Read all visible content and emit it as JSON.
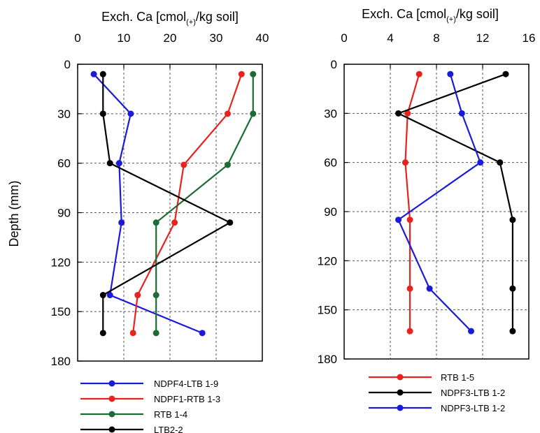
{
  "chart_data": [
    {
      "type": "line",
      "title": "",
      "xlabel_parts": {
        "before": "Exch. Ca [cmol",
        "sub": "(+)",
        "after": "/kg soil]"
      },
      "ylabel": "Depth (mm)",
      "xlim": [
        0,
        40
      ],
      "ylim": [
        0,
        180
      ],
      "y_inverted": true,
      "x_axis_position": "top",
      "xticks": [
        0,
        10,
        20,
        30,
        40
      ],
      "yticks": [
        0,
        30,
        60,
        90,
        120,
        150,
        180
      ],
      "grid": true,
      "legend_placement": "below",
      "series": [
        {
          "name": "NDPF4-LTB 1-9",
          "color": "#1a1adb",
          "x": [
            3.5,
            11.5,
            9.0,
            9.5,
            7.0,
            27.0
          ],
          "y": [
            6,
            30,
            60,
            96,
            140,
            163
          ]
        },
        {
          "name": "NDPF1-RTB 1-3",
          "color": "#e8231e",
          "x": [
            35.5,
            32.5,
            23.0,
            21.0,
            13.0,
            12.0
          ],
          "y": [
            6,
            30,
            61,
            96,
            140,
            163
          ]
        },
        {
          "name": "RTB 1-4",
          "color": "#1f6b35",
          "x": [
            38.0,
            38.0,
            32.5,
            17.0,
            17.0,
            17.0
          ],
          "y": [
            6,
            30,
            61,
            96,
            140,
            163
          ]
        },
        {
          "name": "LTB2-2",
          "color": "#000000",
          "x": [
            5.5,
            5.5,
            7.0,
            33.0,
            5.5,
            5.5
          ],
          "y": [
            6,
            30,
            60,
            96,
            140,
            163
          ]
        }
      ]
    },
    {
      "type": "line",
      "title": "",
      "xlabel_parts": {
        "before": "Exch. Ca [cmol",
        "sub": "(+)",
        "after": "/kg soil]"
      },
      "ylabel": "",
      "xlim": [
        0,
        16
      ],
      "ylim": [
        0,
        180
      ],
      "y_inverted": true,
      "x_axis_position": "top",
      "xticks": [
        0,
        4,
        8,
        12,
        16
      ],
      "yticks": [
        0,
        30,
        60,
        90,
        120,
        150,
        180
      ],
      "grid": true,
      "legend_placement": "below",
      "series": [
        {
          "name": "RTB 1-5",
          "color": "#e8231e",
          "x": [
            6.5,
            5.5,
            5.3,
            5.7,
            5.7,
            5.7
          ],
          "y": [
            6,
            30,
            60,
            95,
            137,
            163
          ]
        },
        {
          "name": "NDPF3-LTB 1-2",
          "color": "#000000",
          "x": [
            14.0,
            4.7,
            13.5,
            14.6,
            14.6,
            14.6
          ],
          "y": [
            6,
            30,
            60,
            95,
            137,
            163
          ]
        },
        {
          "name": "NDPF3-LTB 1-2",
          "color": "#1a1adb",
          "x": [
            9.2,
            10.2,
            11.8,
            4.7,
            7.4,
            11.0
          ],
          "y": [
            6,
            30,
            60,
            95,
            137,
            163
          ]
        }
      ]
    }
  ]
}
